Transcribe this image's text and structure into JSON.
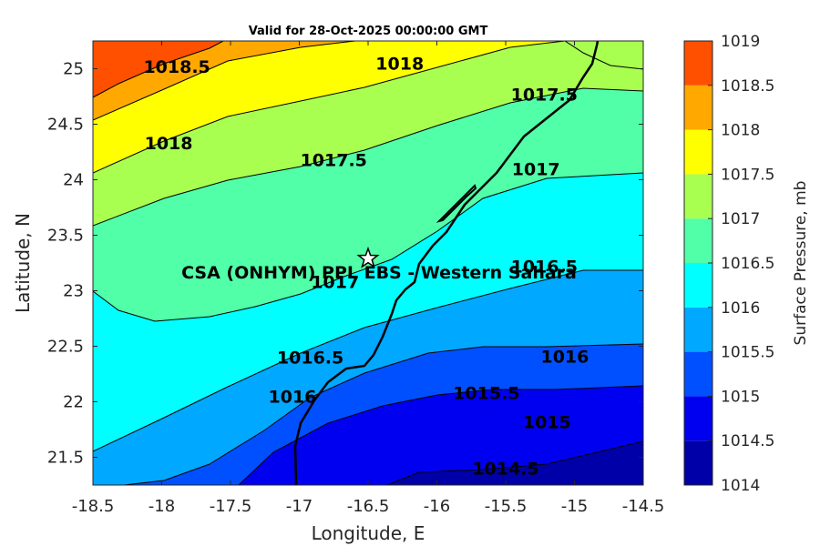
{
  "title": "Valid for 28-Oct-2025 00:00:00 GMT",
  "x_axis": {
    "label": "Longitude, E",
    "range": [
      -18.5,
      -14.5
    ],
    "ticks": [
      -18.5,
      -18,
      -17.5,
      -17,
      -16.5,
      -16,
      -15.5,
      -15,
      -14.5
    ],
    "tick_labels": [
      "-18.5",
      "-18",
      "-17.5",
      "-17",
      "-16.5",
      "-16",
      "-15.5",
      "-15",
      "-14.5"
    ]
  },
  "y_axis": {
    "label": "Latitude, N",
    "range": [
      21.25,
      25.25
    ],
    "ticks": [
      21.5,
      22,
      22.5,
      23,
      23.5,
      24,
      24.5,
      25
    ],
    "tick_labels": [
      "21.5",
      "22",
      "22.5",
      "23",
      "23.5",
      "24",
      "24.5",
      "25"
    ]
  },
  "colorbar": {
    "label": "Surface Pressure, mb",
    "levels": [
      1014,
      1014.5,
      1015,
      1015.5,
      1016,
      1016.5,
      1017,
      1017.5,
      1018,
      1018.5,
      1019
    ],
    "level_labels": [
      "1014",
      "1014.5",
      "1015",
      "1015.5",
      "1016",
      "1016.5",
      "1017",
      "1017.5",
      "1018",
      "1018.5",
      "1019"
    ],
    "colors": [
      "#0000a8",
      "#0000f0",
      "#0050ff",
      "#00a8ff",
      "#00ffff",
      "#50ffa8",
      "#a8ff50",
      "#ffff00",
      "#ffa800",
      "#ff5000",
      "#ff0000"
    ]
  },
  "contour_labels": [
    {
      "text": "1018.5",
      "lon": -17.89,
      "lat": 25.02
    },
    {
      "text": "1018",
      "lon": -16.27,
      "lat": 25.05
    },
    {
      "text": "1017.5",
      "lon": -15.22,
      "lat": 24.77
    },
    {
      "text": "1018",
      "lon": -17.95,
      "lat": 24.33
    },
    {
      "text": "1017.5",
      "lon": -16.75,
      "lat": 24.18
    },
    {
      "text": "1017",
      "lon": -15.28,
      "lat": 24.1
    },
    {
      "text": "1016.5",
      "lon": -15.22,
      "lat": 23.22
    },
    {
      "text": "1017",
      "lon": -16.74,
      "lat": 23.08
    },
    {
      "text": "1016.5",
      "lon": -16.92,
      "lat": 22.4
    },
    {
      "text": "1016",
      "lon": -15.07,
      "lat": 22.41
    },
    {
      "text": "1015.5",
      "lon": -15.64,
      "lat": 22.08
    },
    {
      "text": "1016",
      "lon": -17.05,
      "lat": 22.05
    },
    {
      "text": "1015",
      "lon": -15.2,
      "lat": 21.82
    },
    {
      "text": "1014.5",
      "lon": -15.5,
      "lat": 21.4
    }
  ],
  "site": {
    "name": "CSA (ONHYM) PPL EBS  - Western Sahara",
    "lon": -16.5,
    "lat": 23.29,
    "marker": "star-marker"
  },
  "chart_data": {
    "type": "contour-map",
    "title": "Valid for 28-Oct-2025 00:00:00 GMT",
    "variable": "Surface Pressure, mb",
    "xlabel": "Longitude, E",
    "ylabel": "Latitude, N",
    "xlim": [
      -18.5,
      -14.5
    ],
    "ylim": [
      21.25,
      25.25
    ],
    "contour_interval": 0.5,
    "levels": [
      1014,
      1014.5,
      1015,
      1015.5,
      1016,
      1016.5,
      1017,
      1017.5,
      1018,
      1018.5,
      1019
    ],
    "isolines": [
      {
        "level": 1018.5,
        "points": [
          [
            -18.5,
            24.5
          ],
          [
            -18.0,
            24.75
          ],
          [
            -17.5,
            24.92
          ],
          [
            -17.0,
            25.08
          ],
          [
            -16.5,
            25.2
          ],
          [
            -16.15,
            25.25
          ]
        ]
      },
      {
        "level": 1018,
        "points": [
          [
            -18.5,
            24.08
          ],
          [
            -18.0,
            24.36
          ],
          [
            -17.5,
            24.55
          ],
          [
            -17.0,
            24.68
          ],
          [
            -16.5,
            24.83
          ],
          [
            -16.0,
            25.0
          ],
          [
            -15.5,
            25.15
          ],
          [
            -15.1,
            25.2
          ],
          [
            -14.9,
            25.05
          ],
          [
            -14.5,
            24.95
          ]
        ]
      },
      {
        "level": 1017.5,
        "points": [
          [
            -18.5,
            23.6
          ],
          [
            -18.0,
            23.85
          ],
          [
            -17.5,
            24.0
          ],
          [
            -17.0,
            24.13
          ],
          [
            -16.5,
            24.3
          ],
          [
            -16.0,
            24.55
          ],
          [
            -15.5,
            24.75
          ],
          [
            -15.0,
            24.9
          ],
          [
            -14.5,
            24.85
          ]
        ]
      },
      {
        "level": 1017,
        "points": [
          [
            -18.5,
            23.0
          ],
          [
            -18.2,
            22.83
          ],
          [
            -17.8,
            22.78
          ],
          [
            -17.3,
            22.85
          ],
          [
            -17.0,
            22.98
          ],
          [
            -16.6,
            23.12
          ],
          [
            -16.3,
            23.35
          ],
          [
            -16.0,
            23.65
          ],
          [
            -15.6,
            23.9
          ],
          [
            -15.0,
            24.07
          ],
          [
            -14.5,
            24.1
          ]
        ]
      },
      {
        "level": 1016.5,
        "points": [
          [
            -18.5,
            21.55
          ],
          [
            -18.0,
            21.85
          ],
          [
            -17.5,
            22.2
          ],
          [
            -17.0,
            22.5
          ],
          [
            -16.5,
            22.78
          ],
          [
            -16.0,
            23.0
          ],
          [
            -15.5,
            23.15
          ],
          [
            -15.0,
            23.35
          ],
          [
            -14.5,
            23.3
          ]
        ]
      },
      {
        "level": 1016,
        "points": [
          [
            -18.5,
            21.25
          ],
          [
            -18.4,
            21.28
          ],
          [
            -17.9,
            21.3
          ],
          [
            -17.3,
            21.6
          ],
          [
            -16.9,
            21.95
          ],
          [
            -16.5,
            22.25
          ],
          [
            -16.0,
            22.45
          ],
          [
            -15.5,
            22.48
          ],
          [
            -15.0,
            22.45
          ],
          [
            -14.5,
            22.4
          ]
        ]
      },
      {
        "level": 1015.5,
        "points": [
          [
            -17.3,
            21.25
          ],
          [
            -16.8,
            21.55
          ],
          [
            -16.4,
            21.85
          ],
          [
            -16.0,
            22.02
          ],
          [
            -15.5,
            22.12
          ],
          [
            -15.0,
            22.15
          ],
          [
            -14.5,
            22.15
          ]
        ]
      },
      {
        "level": 1015,
        "points": [
          [
            -16.2,
            21.25
          ],
          [
            -16.0,
            21.55
          ],
          [
            -15.6,
            21.72
          ],
          [
            -15.0,
            21.8
          ],
          [
            -14.5,
            21.88
          ]
        ]
      },
      {
        "level": 1014.5,
        "points": [
          [
            -15.2,
            21.25
          ],
          [
            -15.0,
            21.38
          ],
          [
            -14.5,
            21.5
          ]
        ]
      }
    ],
    "coastline": [
      [
        -17.02,
        21.25
      ],
      [
        -17.03,
        21.6
      ],
      [
        -17.08,
        21.8
      ],
      [
        -16.92,
        22.02
      ],
      [
        -16.75,
        22.2
      ],
      [
        -16.45,
        22.45
      ],
      [
        -16.3,
        22.62
      ],
      [
        -16.32,
        22.82
      ],
      [
        -16.2,
        22.92
      ],
      [
        -16.05,
        23.15
      ],
      [
        -15.95,
        23.45
      ],
      [
        -15.85,
        23.65
      ],
      [
        -15.7,
        23.9
      ],
      [
        -15.45,
        24.25
      ],
      [
        -15.2,
        24.55
      ],
      [
        -15.0,
        24.9
      ],
      [
        -14.87,
        25.05
      ],
      [
        -14.86,
        25.25
      ]
    ],
    "dakhla_peninsula": [
      [
        -16.02,
        23.65
      ],
      [
        -15.92,
        23.82
      ],
      [
        -15.78,
        23.95
      ],
      [
        -15.8,
        24.0
      ],
      [
        -15.93,
        23.88
      ],
      [
        -16.05,
        23.7
      ],
      [
        -16.02,
        23.65
      ]
    ],
    "site": {
      "name": "CSA (ONHYM) PPL EBS  - Western Sahara",
      "lon": -16.5,
      "lat": 23.29
    }
  }
}
